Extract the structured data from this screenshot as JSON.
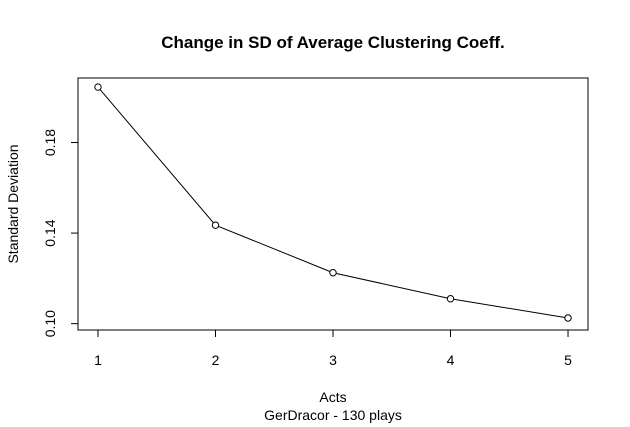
{
  "chart_data": {
    "type": "line",
    "title": "Change in SD of Average Clustering Coeff.",
    "xlabel": "Acts",
    "subtitle": "GerDracor - 130 plays",
    "ylabel": "Standard Deviation",
    "x": [
      1,
      2,
      3,
      4,
      5
    ],
    "x_tick_labels": [
      "1",
      "2",
      "3",
      "4",
      "5"
    ],
    "y_ticks": [
      0.1,
      0.14,
      0.18
    ],
    "y_tick_labels": [
      "0.10",
      "0.14",
      "0.18"
    ],
    "xlim": [
      0.83,
      5.17
    ],
    "ylim": [
      0.0972,
      0.2085
    ],
    "series": [
      {
        "values": [
          0.2045,
          0.1435,
          0.1225,
          0.111,
          0.1025
        ]
      }
    ],
    "grid": false,
    "marker": "open-circle",
    "line_color": "#000000"
  }
}
